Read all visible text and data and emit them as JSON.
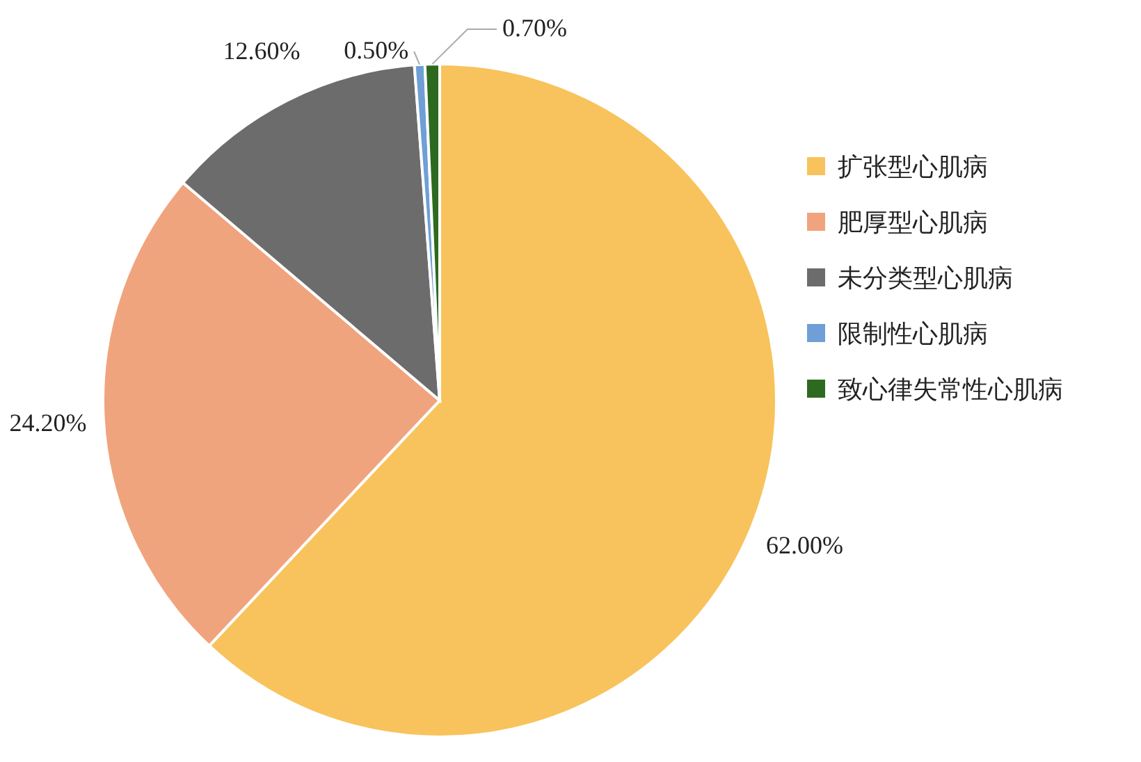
{
  "chart_data": {
    "type": "pie",
    "categories": [
      "扩张型心肌病",
      "肥厚型心肌病",
      "未分类型心肌病",
      "限制性心肌病",
      "致心律失常性心肌病"
    ],
    "values": [
      62.0,
      24.2,
      12.6,
      0.5,
      0.7
    ],
    "colors": [
      "#f8c35c",
      "#f0a47d",
      "#6b6c6b",
      "#6f9fd6",
      "#2d6a1f"
    ],
    "value_labels": [
      "62.00%",
      "24.20%",
      "12.60%",
      "0.50%",
      "0.70%"
    ],
    "legend": "right"
  }
}
